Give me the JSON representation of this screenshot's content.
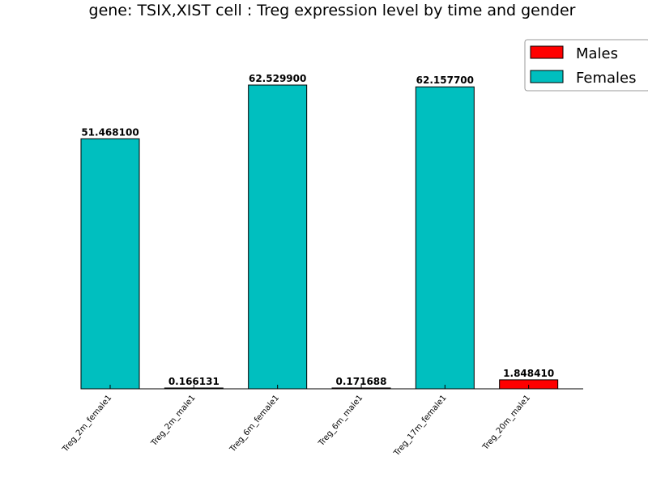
{
  "chart_data": {
    "type": "bar",
    "title": "gene: TSIX,XIST cell : Treg expression level by time and gender",
    "xlabel": "",
    "ylabel": "",
    "categories": [
      "Treg_2m_female1",
      "Treg_2m_male1",
      "Treg_6m_female1",
      "Treg_6m_male1",
      "Treg_17m_female1",
      "Treg_20m_male1"
    ],
    "values": [
      51.4681,
      0.166131,
      62.5299,
      0.171688,
      62.1577,
      1.84841
    ],
    "value_labels": [
      "51.468100",
      "0.166131",
      "62.529900",
      "0.171688",
      "62.157700",
      "1.848410"
    ],
    "category_series": [
      "Females",
      "Males",
      "Females",
      "Males",
      "Females",
      "Males"
    ],
    "series": [
      {
        "name": "Males",
        "color": "#ff0000"
      },
      {
        "name": "Females",
        "color": "#00bfbf"
      }
    ],
    "ylim": [
      0,
      66
    ],
    "grid": false,
    "legend_placement": "top-right"
  }
}
